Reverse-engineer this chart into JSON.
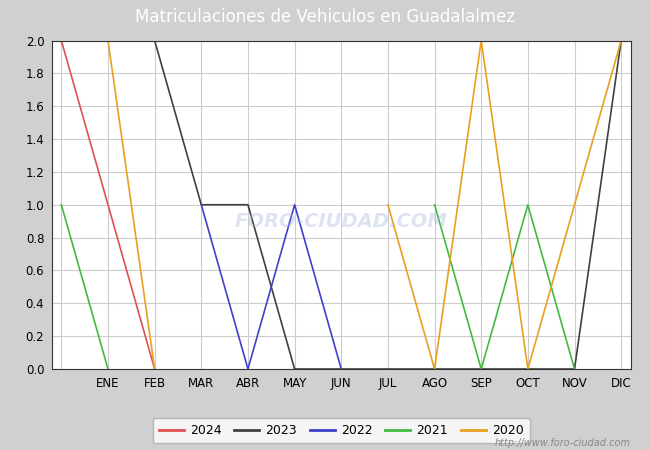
{
  "title": "Matriculaciones de Vehiculos en Guadalalmez",
  "title_display": "Matriculaciones de Vehiculos en Guadalalmez",
  "months_labels": [
    "",
    "ENE",
    "FEB",
    "MAR",
    "ABR",
    "MAY",
    "JUN",
    "JUL",
    "AGO",
    "SEP",
    "OCT",
    "NOV",
    "DIC"
  ],
  "series": {
    "2024": {
      "color": "#e05050",
      "data": [
        2,
        1,
        0,
        null,
        null,
        null,
        null,
        null,
        null,
        null,
        null,
        null,
        null
      ]
    },
    "2023": {
      "color": "#404040",
      "data": [
        2,
        2,
        2,
        1,
        1,
        0,
        0,
        0,
        0,
        0,
        0,
        0,
        2
      ]
    },
    "2022": {
      "color": "#4040cc",
      "data": [
        null,
        null,
        null,
        1,
        0,
        1,
        0,
        null,
        null,
        null,
        null,
        null,
        null
      ]
    },
    "2021": {
      "color": "#40bb40",
      "data": [
        1,
        0,
        null,
        null,
        null,
        null,
        null,
        null,
        1,
        0,
        1,
        0,
        null
      ]
    },
    "2020": {
      "color": "#e8a020",
      "data": [
        2,
        2,
        0,
        null,
        null,
        null,
        null,
        1,
        0,
        2,
        0,
        1,
        2
      ]
    }
  },
  "ylim": [
    0.0,
    2.0
  ],
  "yticks": [
    0.0,
    0.2,
    0.4,
    0.6,
    0.8,
    1.0,
    1.2,
    1.4,
    1.6,
    1.8,
    2.0
  ],
  "fig_bg_color": "#d0d0d0",
  "plot_bg_color": "#ffffff",
  "title_bg_color": "#5588dd",
  "title_color": "#ffffff",
  "grid_color": "#cccccc",
  "watermark_text": "FORO-CIUDAD.COM",
  "watermark_color": "#aabbdd",
  "watermark_alpha": 0.4,
  "url_text": "http://www.foro-ciudad.com",
  "legend_order": [
    "2024",
    "2023",
    "2022",
    "2021",
    "2020"
  ]
}
